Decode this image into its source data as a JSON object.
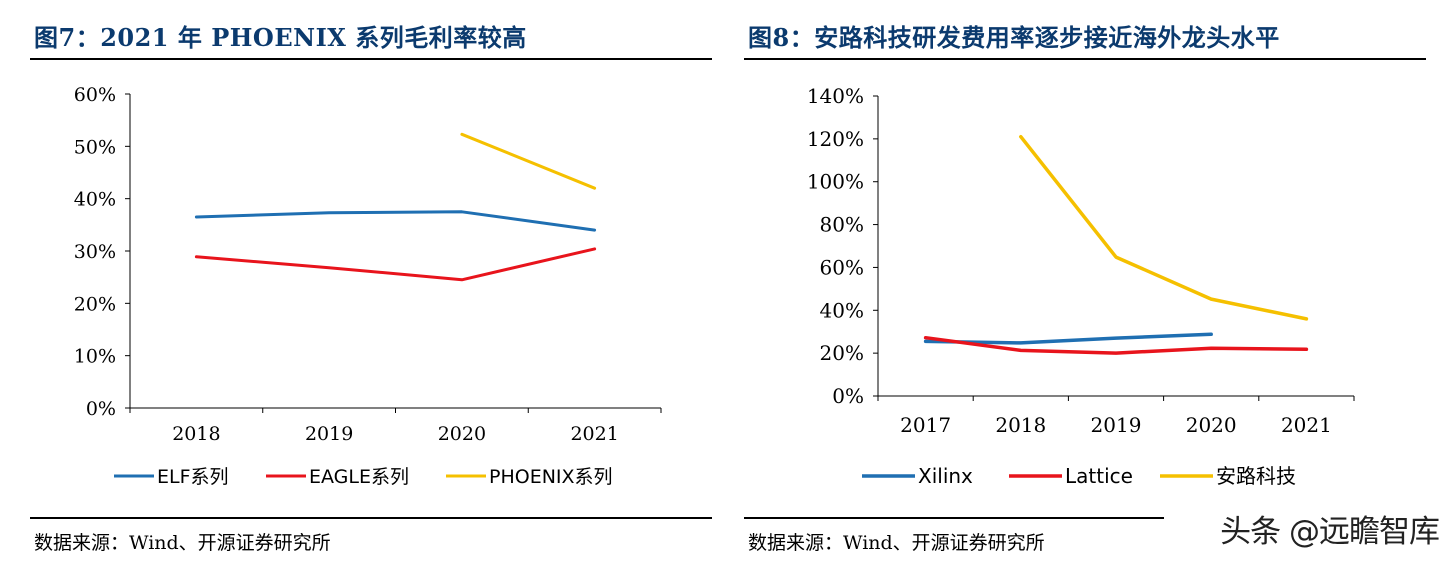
{
  "left": {
    "title": "图7：2021 年 PHOENIX 系列毛利率较高",
    "source": "数据来源：Wind、开源证券研究所"
  },
  "right": {
    "title": "图8：安路科技研发费用率逐步接近海外龙头水平",
    "source": "数据来源：Wind、开源证券研究所"
  },
  "watermark": "头条 @远瞻智库",
  "colors": {
    "blue": "#1f6fb2",
    "red": "#e8141c",
    "yellow": "#f5c000"
  },
  "chart_data": [
    {
      "type": "line",
      "title": "图7：2021 年 PHOENIX 系列毛利率较高",
      "categories": [
        "2018",
        "2019",
        "2020",
        "2021"
      ],
      "ylim": [
        0,
        60
      ],
      "yticks": [
        0,
        10,
        20,
        30,
        40,
        50,
        60
      ],
      "ytick_labels": [
        "0%",
        "10%",
        "20%",
        "30%",
        "40%",
        "50%",
        "60%"
      ],
      "series": [
        {
          "name": "ELF系列",
          "color": "#1f6fb2",
          "values": [
            36.5,
            37.3,
            37.5,
            34.0
          ]
        },
        {
          "name": "EAGLE系列",
          "color": "#e8141c",
          "values": [
            28.9,
            26.8,
            24.5,
            30.4
          ]
        },
        {
          "name": "PHOENIX系列",
          "color": "#f5c000",
          "values": [
            null,
            null,
            52.3,
            42.0
          ]
        }
      ],
      "legend_position": "bottom"
    },
    {
      "type": "line",
      "title": "图8：安路科技研发费用率逐步接近海外龙头水平",
      "categories": [
        "2017",
        "2018",
        "2019",
        "2020",
        "2021"
      ],
      "ylim": [
        0,
        140
      ],
      "yticks": [
        0,
        20,
        40,
        60,
        80,
        100,
        120,
        140
      ],
      "ytick_labels": [
        "0%",
        "20%",
        "40%",
        "60%",
        "80%",
        "100%",
        "120%",
        "140%"
      ],
      "series": [
        {
          "name": "Xilinx",
          "color": "#1f6fb2",
          "values": [
            25.5,
            24.8,
            27.0,
            28.8,
            null
          ]
        },
        {
          "name": "Lattice",
          "color": "#e8141c",
          "values": [
            27.2,
            21.3,
            20.0,
            22.3,
            21.8
          ]
        },
        {
          "name": "安路科技",
          "color": "#f5c000",
          "values": [
            null,
            121.0,
            64.8,
            45.2,
            36.0
          ]
        }
      ],
      "legend_position": "bottom"
    }
  ]
}
